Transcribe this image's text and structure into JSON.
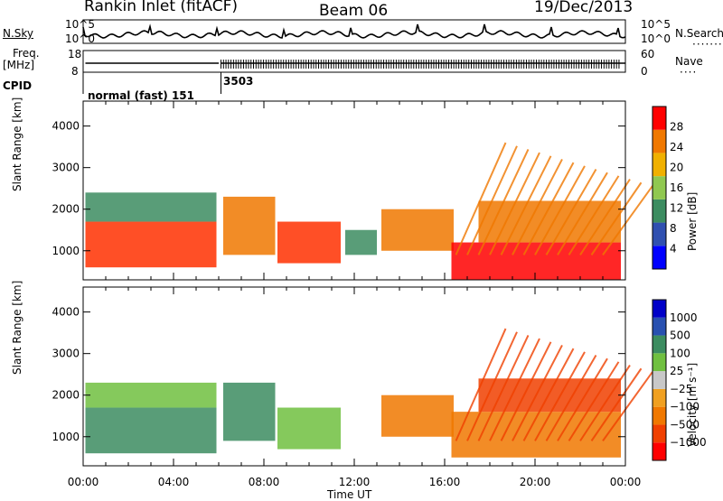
{
  "header": {
    "station": "Rankin Inlet (fitACF)",
    "beam": "Beam 06",
    "date": "19/Dec/2013"
  },
  "top_panels": {
    "nsky_label": "N.Sky",
    "nsearch_label": "N.Search",
    "nsky_ticks": [
      "10^5",
      "10^0"
    ],
    "nsearch_ticks": [
      "10^5",
      "10^0"
    ],
    "freq_label_1": "Freq.",
    "freq_label_2": "[MHz]",
    "freq_ticks": [
      "18",
      "8"
    ],
    "nave_label": "Nave",
    "nave_ticks": [
      "60",
      "0"
    ],
    "cpid_label": "CPID",
    "cpid_segments": [
      {
        "label": "normal (fast) 151",
        "start_hr": 0,
        "end_hr": 6.1
      },
      {
        "label": "3503",
        "start_hr": 6.1,
        "end_hr": 24
      }
    ]
  },
  "chart_data": [
    {
      "type": "heatmap",
      "name": "power",
      "ylabel": "Slant Range [km]",
      "xlabel": "",
      "ylim": [
        300,
        4600
      ],
      "xlim": [
        0,
        24
      ],
      "yticks": [
        "1000",
        "2000",
        "3000",
        "4000"
      ],
      "colorbar": {
        "label": "Power [dB]",
        "ticks": [
          "28",
          "24",
          "20",
          "16",
          "12",
          "8",
          "4"
        ],
        "colors": [
          "#0000ff",
          "#3050b0",
          "#3c8c60",
          "#90c850",
          "#f0b000",
          "#f07800",
          "#ff0000"
        ]
      },
      "regions": [
        {
          "x0": 0.1,
          "x1": 5.9,
          "y0": 600,
          "y1": 1700,
          "c": "#ff3000"
        },
        {
          "x0": 0.1,
          "x1": 5.9,
          "y0": 1700,
          "y1": 2400,
          "c": "#3c8c60"
        },
        {
          "x0": 6.2,
          "x1": 8.5,
          "y0": 900,
          "y1": 2300,
          "c": "#f07800"
        },
        {
          "x0": 8.6,
          "x1": 11.4,
          "y0": 700,
          "y1": 1700,
          "c": "#ff3000"
        },
        {
          "x0": 11.6,
          "x1": 13.0,
          "y0": 900,
          "y1": 1500,
          "c": "#3c8c60"
        },
        {
          "x0": 13.2,
          "x1": 16.4,
          "y0": 1000,
          "y1": 2000,
          "c": "#f07800"
        },
        {
          "x0": 16.3,
          "x1": 23.8,
          "y0": 300,
          "y1": 1200,
          "c": "#ff0000"
        },
        {
          "x0": 17.5,
          "x1": 23.8,
          "y0": 1200,
          "y1": 2200,
          "c": "#f07800"
        }
      ]
    },
    {
      "type": "heatmap",
      "name": "velocity",
      "ylabel": "Slant Range [km]",
      "xlabel": "Time UT",
      "ylim": [
        300,
        4600
      ],
      "xlim": [
        0,
        24
      ],
      "yticks": [
        "1000",
        "2000",
        "3000",
        "4000"
      ],
      "xticks": [
        "00:00",
        "04:00",
        "08:00",
        "12:00",
        "16:00",
        "20:00",
        "00:00"
      ],
      "colorbar": {
        "label": "Velocity [m s⁻¹]",
        "ticks": [
          "1000",
          "500",
          "100",
          "25",
          "−25",
          "−100",
          "−500",
          "−1000"
        ],
        "colors": [
          "#ff0000",
          "#f04000",
          "#f07800",
          "#f0a020",
          "#c8c8c8",
          "#70c040",
          "#3c8c60",
          "#2850b0",
          "#0000c8"
        ]
      },
      "regions": [
        {
          "x0": 0.1,
          "x1": 5.9,
          "y0": 600,
          "y1": 1700,
          "c": "#3c8c60"
        },
        {
          "x0": 0.1,
          "x1": 5.9,
          "y0": 1700,
          "y1": 2300,
          "c": "#70c040"
        },
        {
          "x0": 6.2,
          "x1": 8.5,
          "y0": 900,
          "y1": 2300,
          "c": "#3c8c60"
        },
        {
          "x0": 8.6,
          "x1": 11.4,
          "y0": 700,
          "y1": 1700,
          "c": "#70c040"
        },
        {
          "x0": 13.2,
          "x1": 16.4,
          "y0": 1000,
          "y1": 2000,
          "c": "#f07800"
        },
        {
          "x0": 16.3,
          "x1": 23.8,
          "y0": 500,
          "y1": 1600,
          "c": "#f07800"
        },
        {
          "x0": 17.5,
          "x1": 23.8,
          "y0": 1600,
          "y1": 2400,
          "c": "#f04000"
        }
      ]
    }
  ]
}
